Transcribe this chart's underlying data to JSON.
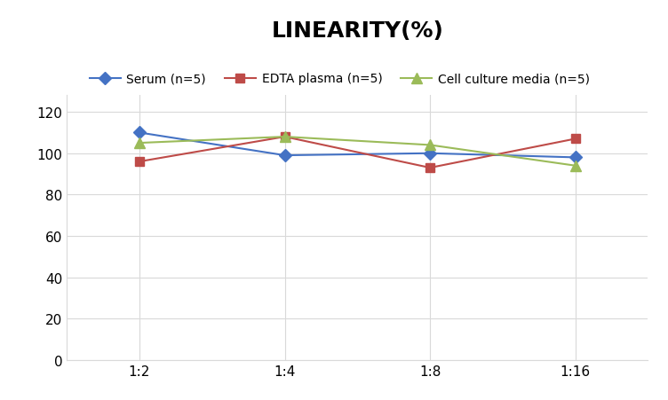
{
  "title": "LINEARITY(%)",
  "title_fontsize": 18,
  "title_fontweight": "bold",
  "x_labels": [
    "1:2",
    "1:4",
    "1:8",
    "1:16"
  ],
  "x_positions": [
    0,
    1,
    2,
    3
  ],
  "series": [
    {
      "label": "Serum (n=5)",
      "values": [
        110,
        99,
        100,
        98
      ],
      "color": "#4472C4",
      "marker": "D",
      "markersize": 7,
      "linewidth": 1.5
    },
    {
      "label": "EDTA plasma (n=5)",
      "values": [
        96,
        108,
        93,
        107
      ],
      "color": "#BE4B48",
      "marker": "s",
      "markersize": 7,
      "linewidth": 1.5
    },
    {
      "label": "Cell culture media (n=5)",
      "values": [
        105,
        108,
        104,
        94
      ],
      "color": "#9BBB59",
      "marker": "^",
      "markersize": 8,
      "linewidth": 1.5
    }
  ],
  "ylim": [
    0,
    128
  ],
  "yticks": [
    0,
    20,
    40,
    60,
    80,
    100,
    120
  ],
  "grid_color": "#D9D9D9",
  "background_color": "#FFFFFF",
  "legend_fontsize": 10,
  "tick_fontsize": 11
}
